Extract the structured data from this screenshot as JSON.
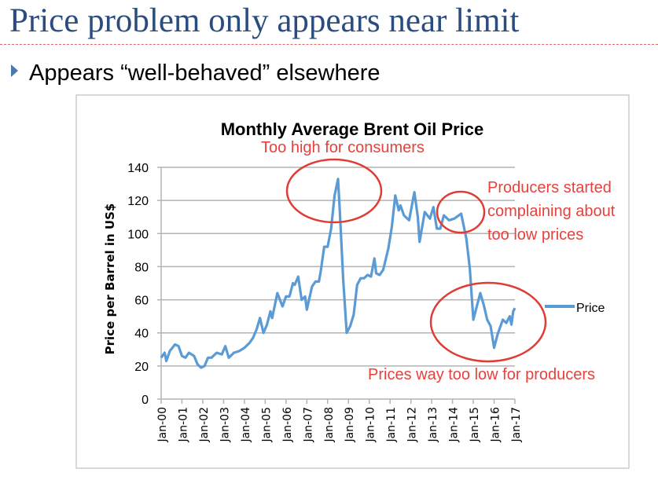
{
  "slide": {
    "title": "Price problem only appears near limit",
    "bullet": "Appears “well-behaved” elsewhere",
    "title_color": "#2b4c7e"
  },
  "chart_data": {
    "type": "line",
    "title": "Monthly Average Brent Oil Price",
    "ylabel": "Price per Barrel in US$",
    "xlabel": "",
    "ylim": [
      0,
      140
    ],
    "yticks": [
      "0",
      "20",
      "40",
      "60",
      "80",
      "100",
      "120",
      "140"
    ],
    "xticks": [
      "Jan-00",
      "Jan-01",
      "Jan-02",
      "Jan-03",
      "Jan-04",
      "Jan-05",
      "Jan-06",
      "Jan-07",
      "Jan-08",
      "Jan-09",
      "Jan-10",
      "Jan-11",
      "Jan-12",
      "Jan-13",
      "Jan-14",
      "Jan-15",
      "Jan-16",
      "Jan-17"
    ],
    "grid": true,
    "legend": {
      "placement": "right",
      "entries": [
        "Price"
      ]
    },
    "series": [
      {
        "name": "Price",
        "color": "#5b9bd5",
        "points": [
          [
            "2000-01",
            25
          ],
          [
            "2000-03",
            28
          ],
          [
            "2000-04",
            23
          ],
          [
            "2000-06",
            29
          ],
          [
            "2000-09",
            33
          ],
          [
            "2000-11",
            32
          ],
          [
            "2001-01",
            26
          ],
          [
            "2001-03",
            25
          ],
          [
            "2001-05",
            28
          ],
          [
            "2001-08",
            26
          ],
          [
            "2001-10",
            21
          ],
          [
            "2001-12",
            19
          ],
          [
            "2002-02",
            20
          ],
          [
            "2002-04",
            25
          ],
          [
            "2002-06",
            25
          ],
          [
            "2002-09",
            28
          ],
          [
            "2002-12",
            27
          ],
          [
            "2003-02",
            32
          ],
          [
            "2003-04",
            25
          ],
          [
            "2003-07",
            28
          ],
          [
            "2003-10",
            29
          ],
          [
            "2004-01",
            31
          ],
          [
            "2004-04",
            34
          ],
          [
            "2004-06",
            37
          ],
          [
            "2004-08",
            42
          ],
          [
            "2004-10",
            49
          ],
          [
            "2004-12",
            40
          ],
          [
            "2005-02",
            45
          ],
          [
            "2005-04",
            53
          ],
          [
            "2005-05",
            49
          ],
          [
            "2005-08",
            64
          ],
          [
            "2005-11",
            56
          ],
          [
            "2006-01",
            62
          ],
          [
            "2006-03",
            62
          ],
          [
            "2006-05",
            70
          ],
          [
            "2006-06",
            69
          ],
          [
            "2006-08",
            74
          ],
          [
            "2006-10",
            60
          ],
          [
            "2006-12",
            62
          ],
          [
            "2007-01",
            54
          ],
          [
            "2007-04",
            68
          ],
          [
            "2007-06",
            71
          ],
          [
            "2007-08",
            71
          ],
          [
            "2007-09",
            77
          ],
          [
            "2007-11",
            92
          ],
          [
            "2008-01",
            92
          ],
          [
            "2008-03",
            103
          ],
          [
            "2008-05",
            123
          ],
          [
            "2008-07",
            133
          ],
          [
            "2008-08",
            114
          ],
          [
            "2008-10",
            72
          ],
          [
            "2008-12",
            40
          ],
          [
            "2009-02",
            44
          ],
          [
            "2009-04",
            51
          ],
          [
            "2009-06",
            69
          ],
          [
            "2009-08",
            73
          ],
          [
            "2009-10",
            73
          ],
          [
            "2009-12",
            75
          ],
          [
            "2010-02",
            74
          ],
          [
            "2010-04",
            85
          ],
          [
            "2010-05",
            76
          ],
          [
            "2010-07",
            75
          ],
          [
            "2010-09",
            78
          ],
          [
            "2010-12",
            91
          ],
          [
            "2011-02",
            104
          ],
          [
            "2011-04",
            123
          ],
          [
            "2011-06",
            114
          ],
          [
            "2011-07",
            117
          ],
          [
            "2011-09",
            111
          ],
          [
            "2011-12",
            108
          ],
          [
            "2012-03",
            125
          ],
          [
            "2012-05",
            110
          ],
          [
            "2012-06",
            95
          ],
          [
            "2012-09",
            113
          ],
          [
            "2012-12",
            109
          ],
          [
            "2013-02",
            116
          ],
          [
            "2013-04",
            103
          ],
          [
            "2013-06",
            103
          ],
          [
            "2013-08",
            111
          ],
          [
            "2013-11",
            108
          ],
          [
            "2014-02",
            109
          ],
          [
            "2014-06",
            112
          ],
          [
            "2014-09",
            97
          ],
          [
            "2014-11",
            79
          ],
          [
            "2015-01",
            48
          ],
          [
            "2015-03",
            56
          ],
          [
            "2015-05",
            64
          ],
          [
            "2015-07",
            57
          ],
          [
            "2015-09",
            48
          ],
          [
            "2015-11",
            44
          ],
          [
            "2016-01",
            31
          ],
          [
            "2016-03",
            39
          ],
          [
            "2016-06",
            48
          ],
          [
            "2016-08",
            46
          ],
          [
            "2016-10",
            50
          ],
          [
            "2016-11",
            45
          ],
          [
            "2016-12",
            53
          ],
          [
            "2017-01",
            55
          ]
        ]
      }
    ],
    "annotations": [
      {
        "text": "Too high for consumers",
        "target": "2008 peak"
      },
      {
        "lines": [
          "Producers started",
          "complaining about",
          "too low prices"
        ],
        "target": "2014 plateau"
      },
      {
        "text": "Prices way too low for producers",
        "target": "2015-2016 trough"
      }
    ],
    "annotation_color": "#e8413c"
  }
}
